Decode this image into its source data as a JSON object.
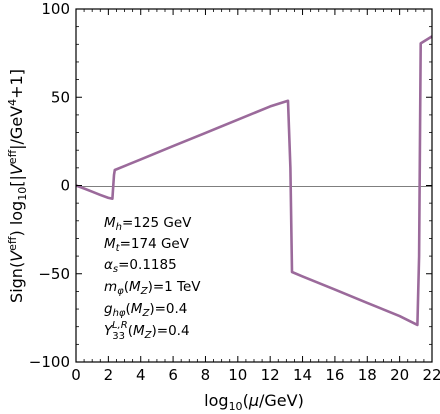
{
  "chart_data": {
    "type": "line",
    "xlabel": "log10(μ/GeV)",
    "ylabel": "Sign(V^eff) log10[|V^eff|/GeV^4+1]",
    "xlim": [
      0,
      22
    ],
    "ylim": [
      -100,
      100
    ],
    "x_ticks": [
      "0",
      "2",
      "4",
      "6",
      "8",
      "10",
      "12",
      "14",
      "16",
      "18",
      "20",
      "22"
    ],
    "y_ticks": [
      "100",
      "50",
      "0",
      "-50",
      "-100"
    ],
    "grid": false,
    "zero_line": true,
    "series": [
      {
        "color": "#9b6a9b",
        "x": [
          0,
          0.5,
          1.0,
          1.5,
          2.0,
          2.25,
          2.35,
          2.4,
          4,
          6,
          8,
          10,
          12,
          13.1,
          13.25,
          13.35,
          14,
          16,
          18,
          20,
          21.1,
          21.2,
          21.3,
          22
        ],
        "y": [
          0,
          -1.7,
          -3.5,
          -5.3,
          -7.0,
          -7.5,
          6.0,
          8.8,
          14.8,
          22.3,
          29.8,
          37.3,
          44.8,
          48.0,
          10.0,
          -49.0,
          -51.5,
          -59.0,
          -66.5,
          -74.0,
          -79.0,
          -40.0,
          80.5,
          84.5
        ]
      }
    ],
    "annotations": [
      "M_h=125 GeV",
      "M_t=174 GeV",
      "α_s=0.1185",
      "m_φ(M_Z)=1 TeV",
      "g_hφ(M_Z)=0.4",
      "Y_33^{L,R}(M_Z)=0.4"
    ]
  }
}
